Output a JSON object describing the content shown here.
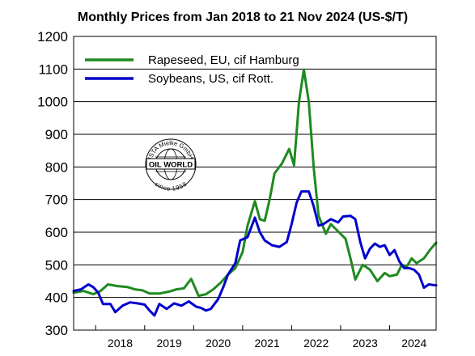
{
  "chart_data": {
    "type": "line",
    "title": "Monthly Prices from Jan 2018 to 21 Nov 2024 (US-$/T)",
    "xlabel": "",
    "ylabel": "",
    "ylim": [
      300,
      1200
    ],
    "yticks": [
      "1200",
      "1100",
      "1000",
      "900",
      "800",
      "700",
      "600",
      "500",
      "400",
      "300"
    ],
    "xticks": [
      "2018",
      "2019",
      "2020",
      "2021",
      "2022",
      "2023",
      "2024"
    ],
    "xlim": [
      2017.55,
      2024.95
    ],
    "grid": true,
    "legend_position": "top-left",
    "logo": {
      "top": "ISTA Mielke GmbH",
      "middle": "OIL WORLD",
      "bottom": "since 1958"
    },
    "series": [
      {
        "name": "Rapeseed, EU, cif Hamburg",
        "color": "#1f8a1f",
        "points": [
          [
            2017.55,
            415
          ],
          [
            2017.75,
            420
          ],
          [
            2017.95,
            410
          ],
          [
            2018.1,
            420
          ],
          [
            2018.25,
            440
          ],
          [
            2018.45,
            435
          ],
          [
            2018.65,
            432
          ],
          [
            2018.8,
            425
          ],
          [
            2018.95,
            422
          ],
          [
            2019.1,
            412
          ],
          [
            2019.3,
            412
          ],
          [
            2019.5,
            418
          ],
          [
            2019.65,
            425
          ],
          [
            2019.8,
            428
          ],
          [
            2019.95,
            457
          ],
          [
            2020.1,
            405
          ],
          [
            2020.25,
            410
          ],
          [
            2020.4,
            425
          ],
          [
            2020.55,
            445
          ],
          [
            2020.7,
            470
          ],
          [
            2020.85,
            490
          ],
          [
            2021.0,
            540
          ],
          [
            2021.1,
            620
          ],
          [
            2021.25,
            695
          ],
          [
            2021.35,
            640
          ],
          [
            2021.45,
            635
          ],
          [
            2021.55,
            700
          ],
          [
            2021.65,
            780
          ],
          [
            2021.8,
            810
          ],
          [
            2021.95,
            855
          ],
          [
            2022.05,
            805
          ],
          [
            2022.15,
            1000
          ],
          [
            2022.25,
            1098
          ],
          [
            2022.35,
            1000
          ],
          [
            2022.45,
            800
          ],
          [
            2022.55,
            650
          ],
          [
            2022.7,
            595
          ],
          [
            2022.8,
            625
          ],
          [
            2022.9,
            610
          ],
          [
            2023.0,
            595
          ],
          [
            2023.1,
            580
          ],
          [
            2023.2,
            520
          ],
          [
            2023.3,
            455
          ],
          [
            2023.45,
            500
          ],
          [
            2023.6,
            485
          ],
          [
            2023.75,
            450
          ],
          [
            2023.9,
            475
          ],
          [
            2024.0,
            465
          ],
          [
            2024.15,
            470
          ],
          [
            2024.25,
            500
          ],
          [
            2024.35,
            495
          ],
          [
            2024.45,
            520
          ],
          [
            2024.55,
            505
          ],
          [
            2024.7,
            520
          ],
          [
            2024.82,
            545
          ],
          [
            2024.95,
            568
          ]
        ]
      },
      {
        "name": "Soybeans, US, cif Rott.",
        "color": "#0000cc",
        "points": [
          [
            2017.55,
            420
          ],
          [
            2017.7,
            425
          ],
          [
            2017.85,
            440
          ],
          [
            2017.95,
            432
          ],
          [
            2018.05,
            415
          ],
          [
            2018.15,
            380
          ],
          [
            2018.3,
            380
          ],
          [
            2018.4,
            355
          ],
          [
            2018.55,
            375
          ],
          [
            2018.7,
            385
          ],
          [
            2018.85,
            382
          ],
          [
            2019.0,
            378
          ],
          [
            2019.1,
            360
          ],
          [
            2019.2,
            345
          ],
          [
            2019.3,
            380
          ],
          [
            2019.45,
            365
          ],
          [
            2019.6,
            382
          ],
          [
            2019.75,
            375
          ],
          [
            2019.9,
            388
          ],
          [
            2020.05,
            372
          ],
          [
            2020.15,
            368
          ],
          [
            2020.25,
            360
          ],
          [
            2020.35,
            365
          ],
          [
            2020.5,
            395
          ],
          [
            2020.6,
            430
          ],
          [
            2020.7,
            470
          ],
          [
            2020.85,
            505
          ],
          [
            2020.95,
            575
          ],
          [
            2021.1,
            585
          ],
          [
            2021.25,
            645
          ],
          [
            2021.35,
            600
          ],
          [
            2021.45,
            575
          ],
          [
            2021.6,
            560
          ],
          [
            2021.75,
            555
          ],
          [
            2021.9,
            570
          ],
          [
            2022.0,
            625
          ],
          [
            2022.1,
            690
          ],
          [
            2022.2,
            725
          ],
          [
            2022.35,
            725
          ],
          [
            2022.45,
            680
          ],
          [
            2022.55,
            620
          ],
          [
            2022.65,
            625
          ],
          [
            2022.8,
            640
          ],
          [
            2022.95,
            630
          ],
          [
            2023.05,
            648
          ],
          [
            2023.2,
            650
          ],
          [
            2023.3,
            640
          ],
          [
            2023.4,
            570
          ],
          [
            2023.5,
            520
          ],
          [
            2023.6,
            550
          ],
          [
            2023.7,
            565
          ],
          [
            2023.8,
            555
          ],
          [
            2023.9,
            560
          ],
          [
            2024.0,
            530
          ],
          [
            2024.1,
            545
          ],
          [
            2024.2,
            510
          ],
          [
            2024.3,
            490
          ],
          [
            2024.4,
            490
          ],
          [
            2024.5,
            485
          ],
          [
            2024.6,
            470
          ],
          [
            2024.7,
            430
          ],
          [
            2024.8,
            440
          ],
          [
            2024.95,
            437
          ]
        ]
      }
    ]
  }
}
